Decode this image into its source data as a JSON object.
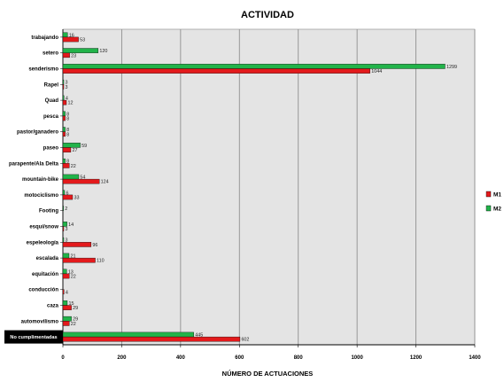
{
  "chart_data": {
    "type": "bar",
    "orientation": "horizontal",
    "title": "ACTIVIDAD",
    "xlabel": "NÚMERO DE ACTUACIONES",
    "ylabel": "",
    "xlim": [
      0,
      1400
    ],
    "xticks": [
      0,
      200,
      400,
      600,
      800,
      1000,
      1200,
      1400
    ],
    "grid": true,
    "legend_position": "right",
    "categories": [
      "trabajando",
      "setero",
      "senderismo",
      "Rapel",
      "Quad",
      "pesca",
      "pastor/ganadero",
      "paseo",
      "parapente/Ala Delta",
      "mountain-bike",
      "motociclismo",
      "Footing",
      "esquí/snow",
      "espeleología",
      "escalada",
      "equitación",
      "conducción",
      "caza",
      "automovilismo",
      "No cumplimentadas"
    ],
    "series": [
      {
        "name": "M1",
        "color": "#e31a1c",
        "values": [
          53,
          23,
          1044,
          3,
          12,
          8,
          8,
          27,
          22,
          124,
          33,
          null,
          3,
          96,
          110,
          22,
          4,
          29,
          22,
          602
        ]
      },
      {
        "name": "M2",
        "color": "#22b34a",
        "values": [
          16,
          120,
          1299,
          3,
          4,
          8,
          8,
          59,
          8,
          54,
          6,
          2,
          14,
          3,
          21,
          13,
          null,
          15,
          29,
          445
        ]
      }
    ],
    "value_label_texts": {
      "M1": [
        "53",
        "23",
        "1044",
        "3",
        "12",
        "8",
        "8",
        "27",
        "22",
        "124",
        "33",
        "",
        "3",
        "96",
        "110",
        "22",
        "4",
        "29",
        "22",
        "602"
      ],
      "M2": [
        "16",
        "120",
        "1299",
        "3",
        "4",
        "8",
        "8",
        "59",
        "8",
        "54",
        "6",
        "2",
        "14",
        "3",
        "21",
        "13",
        "",
        "15",
        "29",
        "445"
      ]
    }
  },
  "colors": {
    "plot_background": "#e4e4e4",
    "gridline": "#909090",
    "highlight_label_background": "#000000",
    "highlight_label_text": "#ffffff"
  }
}
